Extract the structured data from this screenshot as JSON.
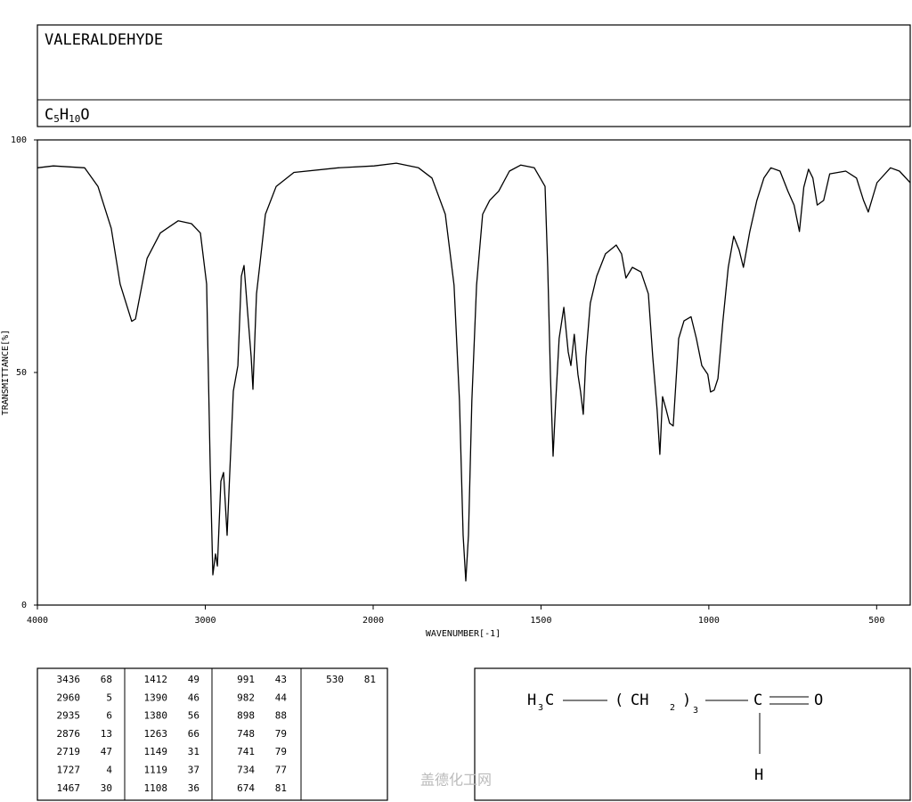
{
  "header": {
    "title": "VALERALDEHYDE",
    "formula": [
      "C",
      "5",
      "H",
      "10",
      "O"
    ]
  },
  "chart_data": {
    "type": "line",
    "xlabel": "WAVENUMBER[-1]",
    "ylabel": "TRANSMITTANCE[%]",
    "xlim": [
      4000,
      400
    ],
    "xscale_break": 2000,
    "ylim": [
      0,
      100
    ],
    "xticks": [
      4000,
      3000,
      2000,
      1500,
      1000,
      500
    ],
    "yticks": [
      0,
      50,
      100
    ],
    "color": "#000000",
    "x": [
      4000,
      3905,
      3719,
      3639,
      3560,
      3507,
      3438,
      3416,
      3347,
      3268,
      3162,
      3082,
      3029,
      2992,
      2971,
      2955,
      2939,
      2928,
      2907,
      2891,
      2870,
      2854,
      2833,
      2806,
      2785,
      2769,
      2748,
      2727,
      2716,
      2695,
      2674,
      2642,
      2578,
      2472,
      2207,
      1997,
      1931,
      1865,
      1825,
      1785,
      1759,
      1743,
      1732,
      1724,
      1716,
      1706,
      1692,
      1674,
      1653,
      1626,
      1594,
      1560,
      1520,
      1488,
      1480,
      1472,
      1464,
      1456,
      1446,
      1432,
      1419,
      1411,
      1401,
      1390,
      1382,
      1374,
      1366,
      1353,
      1334,
      1308,
      1276,
      1260,
      1247,
      1228,
      1202,
      1180,
      1167,
      1154,
      1146,
      1138,
      1127,
      1117,
      1106,
      1090,
      1074,
      1053,
      1037,
      1021,
      1003,
      995,
      984,
      973,
      958,
      942,
      926,
      910,
      897,
      878,
      857,
      836,
      815,
      788,
      764,
      746,
      730,
      717,
      703,
      690,
      677,
      658,
      640,
      592,
      560,
      539,
      525,
      499,
      459,
      432,
      400
    ],
    "values": [
      94,
      94.4,
      94,
      90,
      81,
      69,
      61,
      61.5,
      74.5,
      80,
      82.6,
      82,
      80,
      69,
      30,
      6.5,
      11,
      8.4,
      26.6,
      28.5,
      15,
      28.5,
      46,
      51.5,
      70.7,
      73,
      63,
      53.4,
      46.4,
      66.9,
      73.6,
      84,
      90,
      93,
      94,
      94.4,
      95,
      94,
      91.8,
      84,
      68.8,
      43.9,
      15,
      5.2,
      15,
      43.9,
      68.8,
      84,
      87,
      89,
      93.3,
      94.6,
      94,
      90,
      72.6,
      49.6,
      32,
      43.9,
      57.3,
      64,
      54.4,
      51.5,
      58.2,
      49.6,
      45.8,
      41,
      53.4,
      64.9,
      70.7,
      75.5,
      77.4,
      75.5,
      70.3,
      72.6,
      71.6,
      66.9,
      53.4,
      42,
      32.4,
      44.8,
      42,
      39.1,
      38.5,
      57.3,
      61.1,
      62,
      57.3,
      51.5,
      49.6,
      45.8,
      46.2,
      48.7,
      61.1,
      72.6,
      79.3,
      76.4,
      72.6,
      80.3,
      87,
      91.8,
      94,
      93.3,
      88.9,
      86,
      80.3,
      89.8,
      93.7,
      91.8,
      86,
      87,
      92.7,
      93.3,
      91.8,
      87,
      84.5,
      90.8,
      94,
      93.3,
      90.8
    ]
  },
  "peak_table": {
    "columns": [
      [
        [
          "3436",
          "68"
        ],
        [
          "2960",
          "5"
        ],
        [
          "2935",
          "6"
        ],
        [
          "2876",
          "13"
        ],
        [
          "2719",
          "47"
        ],
        [
          "1727",
          "4"
        ],
        [
          "1467",
          "30"
        ]
      ],
      [
        [
          "1412",
          "49"
        ],
        [
          "1390",
          "46"
        ],
        [
          "1380",
          "56"
        ],
        [
          "1263",
          "66"
        ],
        [
          "1149",
          "31"
        ],
        [
          "1119",
          "37"
        ],
        [
          "1108",
          "36"
        ]
      ],
      [
        [
          "991",
          "43"
        ],
        [
          "982",
          "44"
        ],
        [
          "898",
          "88"
        ],
        [
          "748",
          "79"
        ],
        [
          "741",
          "79"
        ],
        [
          "734",
          "77"
        ],
        [
          "674",
          "81"
        ]
      ],
      [
        [
          "530",
          "81"
        ]
      ]
    ]
  },
  "structure": {
    "left": [
      "H",
      "3",
      "C"
    ],
    "group": [
      "(",
      "CH",
      "2",
      ")",
      "3"
    ],
    "carbon": "C",
    "oxygen": "O",
    "hydrogen": "H"
  },
  "watermark": "盖德化工网"
}
